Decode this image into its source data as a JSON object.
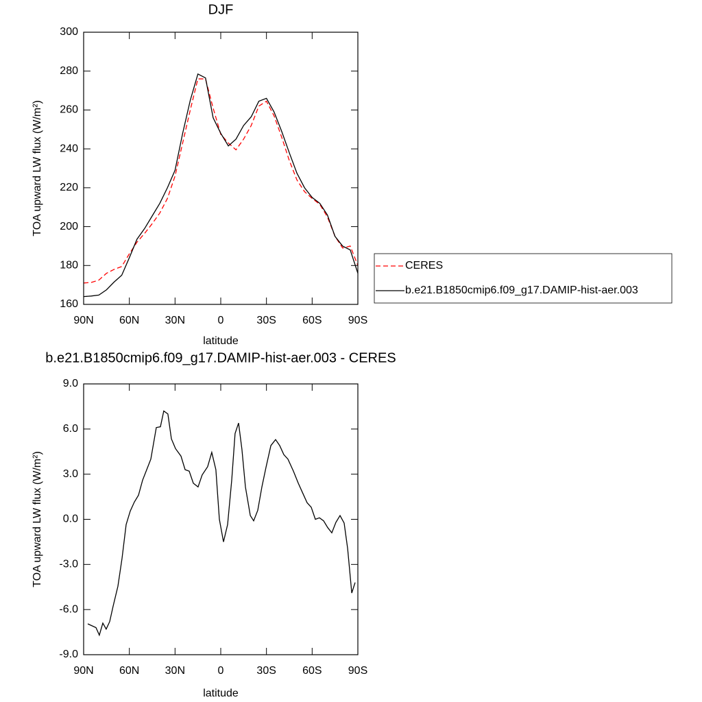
{
  "chart_data": [
    {
      "type": "line",
      "title": "DJF",
      "x_label": "latitude",
      "y_label": "TOA upward LW flux (W/m²)",
      "x": [
        90,
        85,
        80,
        75,
        70,
        65,
        60,
        55,
        50,
        45,
        40,
        35,
        30,
        25,
        20,
        15,
        10,
        5,
        0,
        -5,
        -10,
        -15,
        -20,
        -25,
        -30,
        -35,
        -40,
        -45,
        -50,
        -55,
        -60,
        -65,
        -70,
        -75,
        -80,
        -85,
        -90
      ],
      "xlim": [
        90,
        -90
      ],
      "xticks": [
        {
          "value": 90,
          "label": "90N"
        },
        {
          "value": 60,
          "label": "60N"
        },
        {
          "value": 30,
          "label": "30N"
        },
        0,
        {
          "value": -30,
          "label": "30S"
        },
        {
          "value": -60,
          "label": "60S"
        },
        {
          "value": -90,
          "label": "90S"
        }
      ],
      "ylim": [
        160,
        300
      ],
      "yticks": [
        160,
        180,
        200,
        220,
        240,
        260,
        280,
        300
      ],
      "legend": "right",
      "series": [
        {
          "name": "CERES",
          "color": "#ff0000",
          "dash": true,
          "values": [
            171,
            171.3,
            172.5,
            176,
            178,
            179.5,
            186,
            192,
            196.5,
            201.5,
            207,
            214.5,
            226,
            243,
            260,
            276,
            276,
            261,
            247.5,
            243,
            239.5,
            245,
            252,
            262,
            264.5,
            257,
            246,
            234,
            224,
            218,
            214.5,
            211.5,
            205,
            195,
            189,
            190,
            180
          ]
        },
        {
          "name": "b.e21.B1850cmip6.f09_g17.DAMIP-hist-aer.003",
          "color": "#000000",
          "dash": false,
          "values": [
            164,
            164.3,
            164.8,
            167.5,
            171.5,
            175,
            184,
            193.5,
            199,
            205.5,
            212,
            220,
            229,
            248,
            265,
            278.5,
            276.5,
            256,
            248,
            241.5,
            245,
            252,
            256.5,
            264.5,
            266,
            259,
            249,
            238,
            227.5,
            220,
            215,
            212,
            206,
            195,
            190,
            188,
            176
          ]
        }
      ]
    },
    {
      "type": "line",
      "title": "b.e21.B1850cmip6.f09_g17.DAMIP-hist-aer.003 - CERES",
      "x_label": "latitude",
      "y_label": "TOA upward LW flux (W/m²)",
      "x": [
        87.3,
        81.9,
        79.7,
        77.4,
        75.2,
        72.9,
        70.7,
        67.5,
        64.8,
        62.1,
        59.4,
        56.7,
        54.0,
        51.3,
        48.6,
        45.9,
        42.3,
        39.6,
        37.4,
        34.7,
        32.4,
        29.7,
        26.1,
        23.4,
        20.7,
        18.0,
        14.9,
        12.2,
        8.6,
        5.9,
        3.2,
        0.9,
        -1.8,
        -4.5,
        -7.2,
        -9.4,
        -11.7,
        -13.9,
        -16.2,
        -19.4,
        -21.6,
        -24.3,
        -27.0,
        -29.7,
        -32.9,
        -36.0,
        -38.7,
        -41.4,
        -44.1,
        -47.7,
        -50.9,
        -54.0,
        -56.7,
        -59.4,
        -62.1,
        -64.8,
        -67.5,
        -70.2,
        -72.9,
        -75.6,
        -78.3,
        -81.0,
        -83.3,
        -86.0,
        -88.2
      ],
      "xlim": [
        90,
        -90
      ],
      "xticks": [
        {
          "value": 90,
          "label": "90N"
        },
        {
          "value": 60,
          "label": "60N"
        },
        {
          "value": 30,
          "label": "30N"
        },
        0,
        {
          "value": -30,
          "label": "30S"
        },
        {
          "value": -60,
          "label": "60S"
        },
        {
          "value": -90,
          "label": "90S"
        }
      ],
      "ylim": [
        -9,
        9
      ],
      "yticks": [
        {
          "value": -9,
          "label": "-9.0"
        },
        {
          "value": -6,
          "label": "-6.0"
        },
        {
          "value": -3,
          "label": "-3.0"
        },
        {
          "value": 0,
          "label": "0.0"
        },
        {
          "value": 3,
          "label": "3.0"
        },
        {
          "value": 6,
          "label": "6.0"
        },
        {
          "value": 9,
          "label": "9.0"
        }
      ],
      "series": [
        {
          "color": "#000000",
          "values": [
            -6.95,
            -7.2,
            -7.7,
            -6.9,
            -7.3,
            -6.8,
            -5.8,
            -4.45,
            -2.6,
            -0.35,
            0.55,
            1.15,
            1.6,
            2.6,
            3.3,
            4.0,
            6.1,
            6.15,
            7.2,
            7.0,
            5.35,
            4.7,
            4.2,
            3.3,
            3.2,
            2.4,
            2.15,
            2.95,
            3.5,
            4.45,
            3.3,
            0,
            -1.5,
            -0.35,
            2.6,
            5.7,
            6.4,
            4.65,
            2.15,
            0.25,
            -0.1,
            0.6,
            2.15,
            3.45,
            4.9,
            5.3,
            4.9,
            4.3,
            4.0,
            3.2,
            2.4,
            1.7,
            1.1,
            0.8,
            0,
            0.1,
            -0.1,
            -0.55,
            -0.9,
            -0.2,
            0.25,
            -0.25,
            -1.95,
            -4.9,
            -4.2
          ]
        }
      ]
    }
  ]
}
